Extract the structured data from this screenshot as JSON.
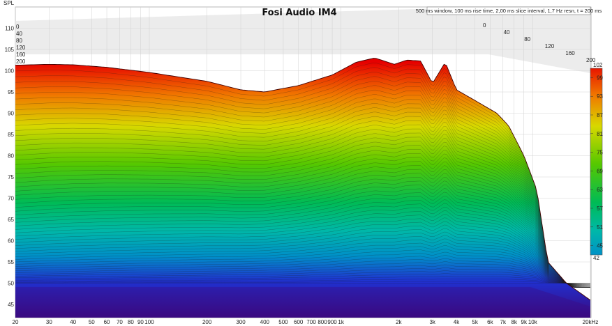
{
  "chart_data": {
    "type": "area",
    "subtype": "cumulative-spectral-decay-waterfall",
    "title": "Fosi Audio IM4",
    "subtitle": "500 ms window, 100 ms rise time, 2,00 ms slice interval, 1,7 Hz resn, t = 200 ms",
    "ylabel": "SPL",
    "ylim": [
      45,
      110
    ],
    "y_ticks": [
      45,
      50,
      55,
      60,
      65,
      70,
      75,
      80,
      85,
      90,
      95,
      100,
      105,
      110
    ],
    "x_scale": "log",
    "xlim": [
      20,
      20000
    ],
    "x_ticks": [
      20,
      30,
      40,
      50,
      60,
      70,
      80,
      90,
      100,
      200,
      300,
      400,
      500,
      600,
      700,
      800,
      900,
      1000,
      2000,
      3000,
      4000,
      5000,
      6000,
      7000,
      8000,
      9000,
      10000,
      20000
    ],
    "x_tick_labels": [
      "20",
      "30",
      "40",
      "50",
      "60",
      "70",
      "80",
      "90",
      "100",
      "200",
      "300",
      "400",
      "500",
      "600",
      "700",
      "800",
      "900",
      "1k",
      "2k",
      "3k",
      "4k",
      "5k",
      "6k",
      "7k",
      "8k",
      "9k",
      "10k",
      "20kHz"
    ],
    "time_axis_labels": [
      "0",
      "40",
      "80",
      "120",
      "160",
      "200"
    ],
    "front_slice_points": [
      [
        20,
        101.3
      ],
      [
        30,
        101.5
      ],
      [
        40,
        101.4
      ],
      [
        60,
        100.8
      ],
      [
        100,
        99.6
      ],
      [
        200,
        97.5
      ],
      [
        300,
        95.5
      ],
      [
        400,
        95.0
      ],
      [
        600,
        96.5
      ],
      [
        900,
        99.0
      ],
      [
        1200,
        102.0
      ],
      [
        1500,
        103.0
      ],
      [
        1900,
        101.5
      ],
      [
        2200,
        102.5
      ],
      [
        2600,
        102.3
      ],
      [
        3000,
        97.0
      ],
      [
        3500,
        102.0
      ],
      [
        4000,
        95.5
      ],
      [
        5000,
        93.0
      ],
      [
        6500,
        90.0
      ],
      [
        7500,
        87.0
      ],
      [
        9000,
        80.0
      ],
      [
        10500,
        72.0
      ],
      [
        12000,
        55.0
      ],
      [
        15000,
        50.0
      ],
      [
        20000,
        46.0
      ]
    ],
    "colorbar": {
      "min": 42,
      "max": 102,
      "ticks": [
        45,
        51,
        57,
        63,
        69,
        75,
        81,
        87,
        93,
        99
      ],
      "min_label": "42",
      "max_label": "102"
    },
    "grid": true
  }
}
